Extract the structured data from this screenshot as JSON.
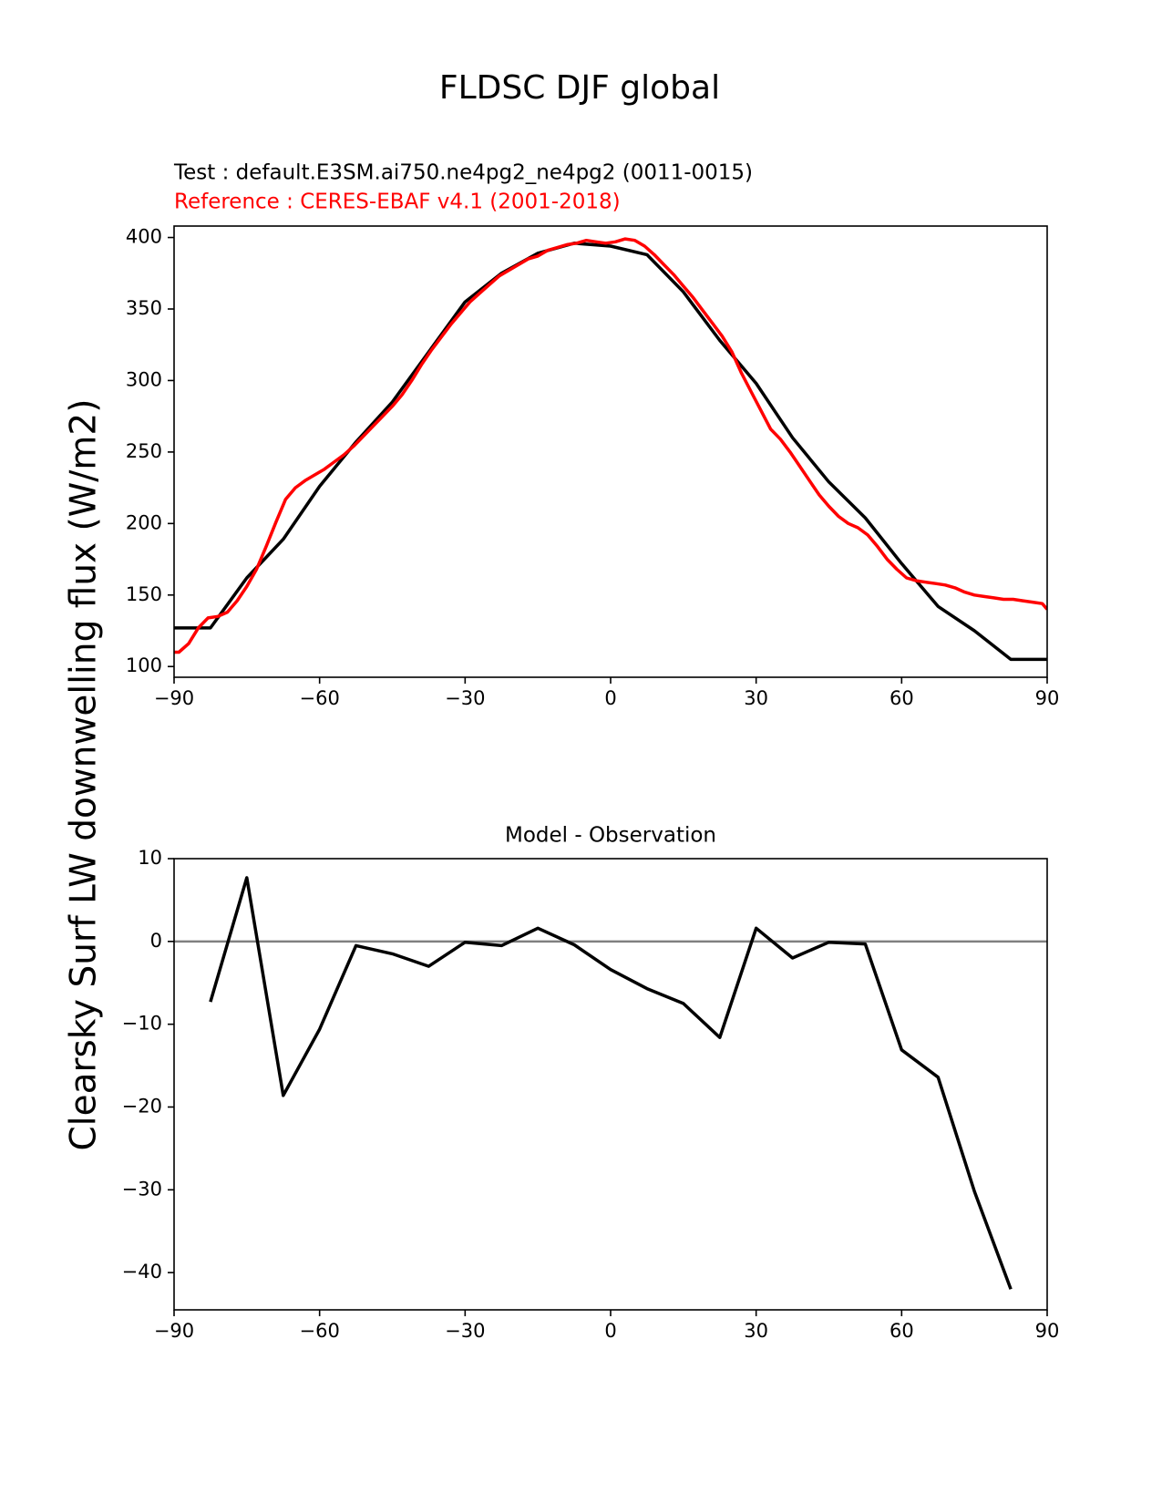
{
  "figure": {
    "title": "FLDSC DJF global"
  },
  "chart_data": [
    {
      "type": "line",
      "test_label": "Test : default.E3SM.ai750.ne4pg2_ne4pg2 (0011-0015)",
      "reference_label": "Reference : CERES-EBAF v4.1 (2001-2018)",
      "ylabel": "Clearsky Surf LW downwelling flux (W/m2)",
      "xlim": [
        -90,
        90
      ],
      "ylim": [
        92.5,
        408
      ],
      "xticks": [
        "−90",
        "−60",
        "−30",
        "0",
        "30",
        "60",
        "90"
      ],
      "xtick_values": [
        -90,
        -60,
        -30,
        0,
        30,
        60,
        90
      ],
      "yticks": [
        "100",
        "150",
        "200",
        "250",
        "300",
        "350",
        "400"
      ],
      "ytick_values": [
        100,
        150,
        200,
        250,
        300,
        350,
        400
      ],
      "series": [
        {
          "color": "#000000",
          "x": [
            -90,
            -82.5,
            -75,
            -67.5,
            -60,
            -52.5,
            -45,
            -37.5,
            -30,
            -22.5,
            -15,
            -7.5,
            0,
            7.5,
            15,
            22.5,
            30,
            37.5,
            45,
            52.5,
            60,
            67.5,
            75,
            82.5,
            90
          ],
          "y": [
            127,
            127,
            162,
            189,
            226,
            257,
            285,
            320,
            355,
            375,
            389,
            396,
            394,
            388,
            362,
            328,
            298,
            260,
            229,
            204,
            172,
            142,
            125,
            105,
            105
          ]
        },
        {
          "color": "#ff0000",
          "x": [
            -90,
            -89,
            -87,
            -85,
            -83,
            -81,
            -79,
            -77,
            -75,
            -73,
            -71,
            -69,
            -67,
            -65,
            -63,
            -61,
            -59,
            -57,
            -55,
            -53,
            -51,
            -49,
            -47,
            -45,
            -43,
            -41,
            -39,
            -37,
            -35,
            -33,
            -31,
            -29,
            -27,
            -25,
            -23,
            -21,
            -19,
            -17,
            -15,
            -13,
            -11,
            -9,
            -7,
            -5,
            -3,
            -1,
            1,
            3,
            5,
            7,
            9,
            11,
            13,
            15,
            17,
            19,
            21,
            23,
            25,
            27,
            29,
            31,
            33,
            35,
            37,
            39,
            41,
            43,
            45,
            47,
            49,
            51,
            53,
            55,
            57,
            59,
            61,
            63,
            65,
            67,
            69,
            71,
            73,
            75,
            77,
            79,
            81,
            83,
            85,
            87,
            89,
            90
          ],
          "y": [
            110,
            110,
            116,
            127,
            134,
            135,
            138,
            146,
            156,
            168,
            184,
            201,
            217,
            225,
            230,
            234,
            238,
            243,
            248,
            254,
            261,
            268,
            275,
            282,
            290,
            300,
            311,
            321,
            330,
            339,
            347,
            355,
            361,
            367,
            373,
            377,
            381,
            385,
            387,
            391,
            393,
            395,
            396,
            398,
            397,
            396,
            397,
            399,
            398,
            394,
            388,
            381,
            374,
            366,
            358,
            349,
            340,
            331,
            320,
            305,
            292,
            279,
            266,
            259,
            250,
            240,
            230,
            220,
            212,
            205,
            200,
            197,
            192,
            184,
            175,
            168,
            162,
            160,
            159,
            158,
            157,
            155,
            152,
            150,
            149,
            148,
            147,
            147,
            146,
            145,
            144,
            140
          ]
        }
      ]
    },
    {
      "type": "line",
      "title": "Model - Observation",
      "xlim": [
        -90,
        90
      ],
      "ylim": [
        -44.5,
        10
      ],
      "xticks": [
        "−90",
        "−60",
        "−30",
        "0",
        "30",
        "60",
        "90"
      ],
      "xtick_values": [
        -90,
        -60,
        -30,
        0,
        30,
        60,
        90
      ],
      "yticks": [
        "10",
        "0",
        "−10",
        "−20",
        "−30",
        "−40"
      ],
      "ytick_values": [
        10,
        0,
        -10,
        -20,
        -30,
        -40
      ],
      "zero_line_color": "#808080",
      "series": [
        {
          "color": "#000000",
          "x": [
            -82.5,
            -75,
            -67.5,
            -60,
            -52.5,
            -45,
            -37.5,
            -30,
            -22.5,
            -15,
            -7.5,
            0,
            7.5,
            15,
            22.5,
            30,
            37.5,
            45,
            52.5,
            60,
            67.5,
            75,
            82.5
          ],
          "y": [
            -7.3,
            7.7,
            -18.6,
            -10.6,
            -0.5,
            -1.5,
            -3.0,
            -0.1,
            -0.5,
            1.6,
            -0.4,
            -3.4,
            -5.7,
            -7.5,
            -11.6,
            1.6,
            -2.0,
            -0.1,
            -0.3,
            -13.1,
            -16.4,
            -30.2,
            -42.0
          ]
        }
      ]
    }
  ]
}
